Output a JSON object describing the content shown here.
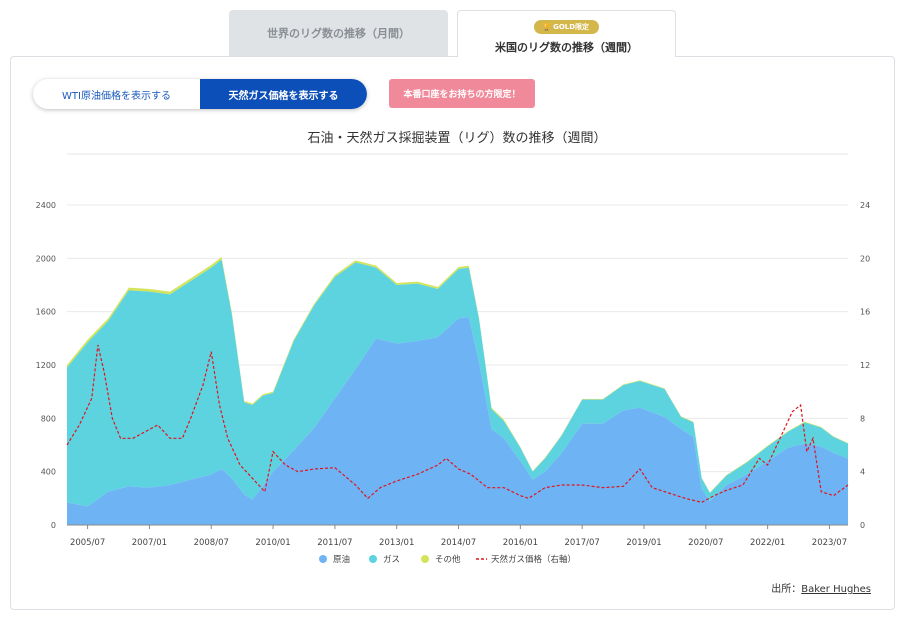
{
  "tabs": {
    "world": "世界のリグ数の推移（月間）",
    "us": "米国のリグ数の推移（週間）",
    "gold_badge": "GOLD限定"
  },
  "toggle": {
    "wti": "WTI原油価格を表示する",
    "gas": "天然ガス価格を表示する"
  },
  "badge": "本番口座をお持ちの方限定！",
  "source": {
    "label": "出所：",
    "link": "Baker Hughes"
  },
  "colors": {
    "oil": "#6eb4f5",
    "gas": "#5dd3e0",
    "other": "#d3e45a",
    "gas_price": "#e0141e"
  },
  "chart_data": {
    "type": "area",
    "title": "石油・天然ガス採掘装置（リグ）数の推移（週間）",
    "x_ticks": [
      "2005/07",
      "2007/01",
      "2008/07",
      "2010/01",
      "2011/07",
      "2013/01",
      "2014/07",
      "2016/01",
      "2017/07",
      "2019/01",
      "2020/07",
      "2022/01",
      "2023/07"
    ],
    "y_left_ticks": [
      "0",
      "400",
      "800",
      "1200",
      "1600",
      "2000",
      "2400"
    ],
    "y_right_ticks": [
      "0",
      "4",
      "8",
      "12",
      "16",
      "20",
      "24"
    ],
    "ylim_left": [
      0,
      2400
    ],
    "ylim_right": [
      0,
      24
    ],
    "xlim": [
      2005.0,
      2023.95
    ],
    "legend": [
      "原油",
      "ガス",
      "その他",
      "天然ガス価格（右軸）"
    ],
    "legend_position": "bottom",
    "x": [
      2005.0,
      2005.5,
      2006.0,
      2006.5,
      2007.0,
      2007.5,
      2008.0,
      2008.5,
      2008.75,
      2009.0,
      2009.3,
      2009.5,
      2009.75,
      2010.0,
      2010.5,
      2011.0,
      2011.5,
      2012.0,
      2012.5,
      2013.0,
      2013.5,
      2014.0,
      2014.5,
      2014.75,
      2015.0,
      2015.3,
      2015.6,
      2016.0,
      2016.3,
      2016.6,
      2017.0,
      2017.5,
      2018.0,
      2018.5,
      2018.9,
      2019.5,
      2019.9,
      2020.2,
      2020.4,
      2020.6,
      2021.0,
      2021.5,
      2022.0,
      2022.5,
      2022.9,
      2023.3,
      2023.6,
      2023.95
    ],
    "series": [
      {
        "name": "原油",
        "values": [
          170,
          140,
          250,
          290,
          280,
          300,
          340,
          380,
          420,
          350,
          230,
          190,
          290,
          400,
          560,
          730,
          950,
          1170,
          1400,
          1360,
          1380,
          1410,
          1550,
          1560,
          1220,
          720,
          650,
          480,
          340,
          400,
          540,
          760,
          760,
          860,
          880,
          810,
          720,
          660,
          270,
          180,
          300,
          380,
          480,
          580,
          610,
          590,
          540,
          500
        ]
      },
      {
        "name": "ガス",
        "values": [
          1010,
          1230,
          1280,
          1470,
          1470,
          1430,
          1490,
          1550,
          1570,
          1230,
          690,
          710,
          680,
          590,
          820,
          920,
          910,
          800,
          530,
          440,
          430,
          360,
          370,
          370,
          320,
          150,
          130,
          100,
          60,
          100,
          130,
          180,
          180,
          190,
          200,
          210,
          90,
          110,
          80,
          60,
          70,
          90,
          110,
          120,
          160,
          140,
          120,
          110
        ]
      },
      {
        "name": "その他",
        "values": [
          20,
          20,
          20,
          20,
          20,
          20,
          20,
          20,
          20,
          15,
          10,
          10,
          10,
          10,
          10,
          10,
          15,
          15,
          15,
          15,
          15,
          15,
          15,
          15,
          10,
          10,
          10,
          5,
          5,
          5,
          5,
          5,
          5,
          5,
          5,
          5,
          5,
          5,
          5,
          5,
          5,
          5,
          5,
          5,
          5,
          5,
          5,
          5
        ]
      }
    ],
    "gas_price": {
      "name": "天然ガス価格（右軸）",
      "x": [
        2005.0,
        2005.3,
        2005.6,
        2005.75,
        2005.9,
        2006.1,
        2006.3,
        2006.6,
        2006.9,
        2007.2,
        2007.5,
        2007.8,
        2008.0,
        2008.3,
        2008.5,
        2008.7,
        2008.9,
        2009.2,
        2009.5,
        2009.8,
        2010.0,
        2010.3,
        2010.6,
        2011.0,
        2011.5,
        2012.0,
        2012.3,
        2012.6,
        2013.0,
        2013.5,
        2014.0,
        2014.2,
        2014.5,
        2014.8,
        2015.2,
        2015.6,
        2016.0,
        2016.2,
        2016.6,
        2017.0,
        2017.5,
        2018.0,
        2018.5,
        2018.9,
        2019.2,
        2019.6,
        2020.0,
        2020.4,
        2020.7,
        2021.0,
        2021.4,
        2021.8,
        2022.0,
        2022.3,
        2022.6,
        2022.8,
        2022.95,
        2023.1,
        2023.3,
        2023.6,
        2023.95
      ],
      "values": [
        6.0,
        7.5,
        9.5,
        13.5,
        11.5,
        8.0,
        6.5,
        6.5,
        7.0,
        7.5,
        6.5,
        6.5,
        8.0,
        10.5,
        13.0,
        9.0,
        6.5,
        4.5,
        3.5,
        2.5,
        5.5,
        4.5,
        4.0,
        4.2,
        4.3,
        3.0,
        2.0,
        2.8,
        3.3,
        3.8,
        4.5,
        5.0,
        4.2,
        3.8,
        2.8,
        2.8,
        2.2,
        2.0,
        2.8,
        3.0,
        3.0,
        2.8,
        2.9,
        4.2,
        2.8,
        2.4,
        2.0,
        1.7,
        2.2,
        2.6,
        3.0,
        5.0,
        4.5,
        6.5,
        8.5,
        9.0,
        5.5,
        6.5,
        2.5,
        2.2,
        3.0
      ]
    }
  }
}
